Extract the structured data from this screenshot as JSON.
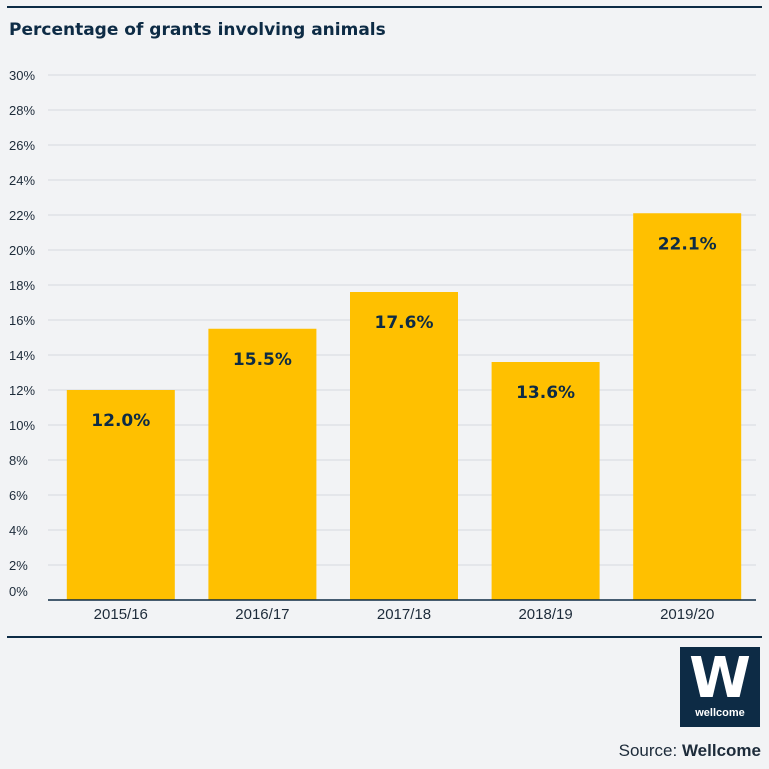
{
  "header": {
    "title": "Percentage of grants involving animals"
  },
  "chart_data": {
    "type": "bar",
    "categories": [
      "2015/16",
      "2016/17",
      "2017/18",
      "2018/19",
      "2019/20"
    ],
    "values": [
      12.0,
      15.5,
      17.6,
      13.6,
      22.1
    ],
    "data_labels": [
      "12.0%",
      "15.5%",
      "17.6%",
      "13.6%",
      "22.1%"
    ],
    "title": "Percentage of grants involving animals",
    "xlabel": "",
    "ylabel": "",
    "ylim": [
      0,
      30
    ],
    "yticks": [
      0,
      2,
      4,
      6,
      8,
      10,
      12,
      14,
      16,
      18,
      20,
      22,
      24,
      26,
      28,
      30
    ],
    "ytick_labels": [
      "0%",
      "2%",
      "4%",
      "6%",
      "8%",
      "10%",
      "12%",
      "14%",
      "16%",
      "18%",
      "20%",
      "22%",
      "24%",
      "26%",
      "28%",
      "30%"
    ],
    "grid": true,
    "legend": "none",
    "bar_color": "#ffc000",
    "grid_color": "#d6d9de"
  },
  "footer": {
    "logo_letter": "W",
    "logo_text": "wellcome",
    "source_prefix": "Source:",
    "source_name": "Wellcome"
  },
  "colors": {
    "brand": "#0d2b45",
    "bar": "#ffc000",
    "background": "#f2f3f5"
  }
}
